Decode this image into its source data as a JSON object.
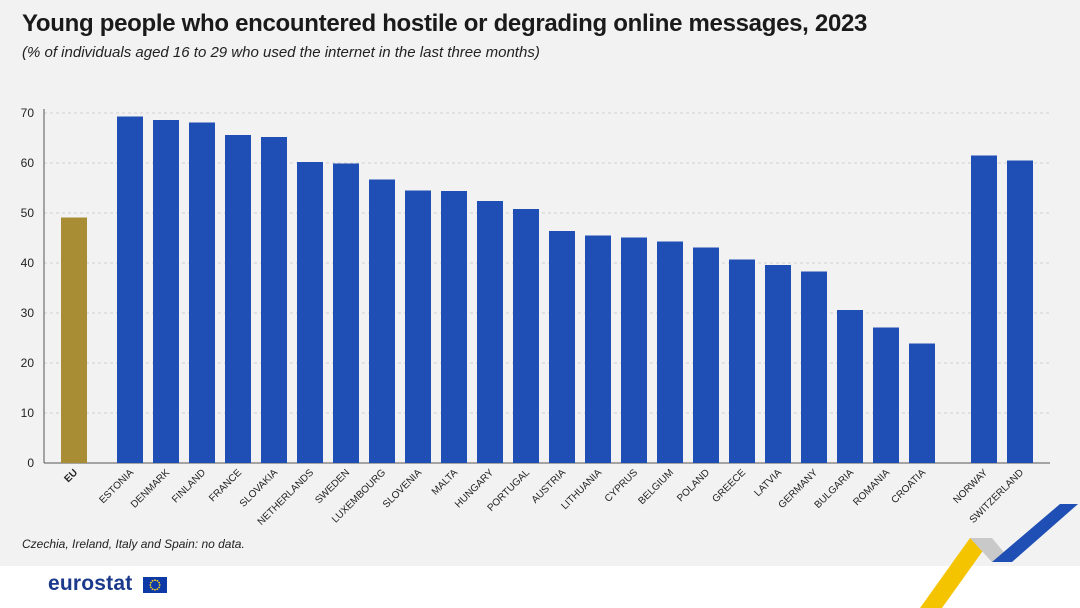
{
  "header": {
    "title": "Young people who encountered hostile or degrading online messages, 2023",
    "subtitle": "(% of individuals aged 16 to 29 who used the internet in the last three months)"
  },
  "note": "Czechia, Ireland, Italy and Spain: no data.",
  "brand": {
    "logo": "eurostat",
    "flag_icon": "eu-flag-icon"
  },
  "colors": {
    "eu_bar": "#a88d35",
    "country_bar": "#1f4fb4",
    "grid": "#d0d0d0",
    "axis": "#555555"
  },
  "chart_data": {
    "type": "bar",
    "title": "Young people who encountered hostile or degrading online messages, 2023",
    "subtitle": "(% of individuals aged 16 to 29 who used the internet in the last three months)",
    "xlabel": "",
    "ylabel": "",
    "ylim": [
      0,
      70
    ],
    "yticks": [
      0,
      10,
      20,
      30,
      40,
      50,
      60,
      70
    ],
    "grid": true,
    "categories": [
      "EU",
      "ESTONIA",
      "DENMARK",
      "FINLAND",
      "FRANCE",
      "SLOVAKIA",
      "NETHERLANDS",
      "SWEDEN",
      "LUXEMBOURG",
      "SLOVENIA",
      "MALTA",
      "HUNGARY",
      "PORTUGAL",
      "AUSTRIA",
      "LITHUANIA",
      "CYPRUS",
      "BELGIUM",
      "POLAND",
      "GREECE",
      "LATVIA",
      "GERMANY",
      "BULGARIA",
      "ROMANIA",
      "CROATIA",
      "NORWAY",
      "SWITZERLAND"
    ],
    "values": [
      49.1,
      69.3,
      68.6,
      68.1,
      65.6,
      65.2,
      60.2,
      59.9,
      56.7,
      54.5,
      54.4,
      52.4,
      50.8,
      46.4,
      45.5,
      45.1,
      44.3,
      43.1,
      40.7,
      39.6,
      38.3,
      30.6,
      27.1,
      23.9,
      61.5,
      60.5
    ],
    "groups": [
      "eu",
      "country",
      "country",
      "country",
      "country",
      "country",
      "country",
      "country",
      "country",
      "country",
      "country",
      "country",
      "country",
      "country",
      "country",
      "country",
      "country",
      "country",
      "country",
      "country",
      "country",
      "country",
      "country",
      "country",
      "efta",
      "efta"
    ]
  }
}
